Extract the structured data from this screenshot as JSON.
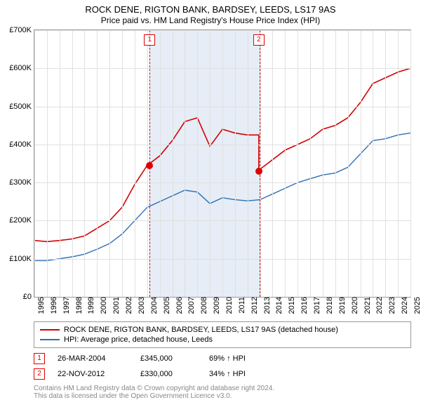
{
  "title": "ROCK DENE, RIGTON BANK, BARDSEY, LEEDS, LS17 9AS",
  "subtitle": "Price paid vs. HM Land Registry's House Price Index (HPI)",
  "chart": {
    "type": "line",
    "background_color": "#ffffff",
    "grid_color": "#e0e0e0",
    "border_color": "#999999",
    "ylim": [
      0,
      700000
    ],
    "ytick_step": 100000,
    "y_ticks": [
      "£0",
      "£100K",
      "£200K",
      "£300K",
      "£400K",
      "£500K",
      "£600K",
      "£700K"
    ],
    "xlim": [
      1995,
      2025
    ],
    "x_ticks": [
      "1995",
      "1996",
      "1997",
      "1998",
      "1999",
      "2000",
      "2001",
      "2002",
      "2003",
      "2004",
      "2005",
      "2006",
      "2007",
      "2008",
      "2009",
      "2010",
      "2011",
      "2012",
      "2013",
      "2014",
      "2015",
      "2016",
      "2017",
      "2018",
      "2019",
      "2020",
      "2021",
      "2022",
      "2023",
      "2024",
      "2025"
    ],
    "series": [
      {
        "name": "price_paid",
        "label": "ROCK DENE, RIGTON BANK, BARDSEY, LEEDS, LS17 9AS (detached house)",
        "color": "#d40000",
        "line_width": 1.6,
        "points": [
          [
            1995,
            148000
          ],
          [
            1996,
            145000
          ],
          [
            1997,
            148000
          ],
          [
            1998,
            152000
          ],
          [
            1999,
            160000
          ],
          [
            2000,
            180000
          ],
          [
            2001,
            200000
          ],
          [
            2002,
            235000
          ],
          [
            2003,
            295000
          ],
          [
            2004,
            345000
          ],
          [
            2005,
            370000
          ],
          [
            2006,
            410000
          ],
          [
            2007,
            460000
          ],
          [
            2008,
            470000
          ],
          [
            2009,
            395000
          ],
          [
            2010,
            440000
          ],
          [
            2011,
            430000
          ],
          [
            2012,
            425000
          ],
          [
            2012.9,
            425000
          ],
          [
            2012.9,
            330000
          ],
          [
            2013,
            335000
          ],
          [
            2014,
            360000
          ],
          [
            2015,
            385000
          ],
          [
            2016,
            400000
          ],
          [
            2017,
            415000
          ],
          [
            2018,
            440000
          ],
          [
            2019,
            450000
          ],
          [
            2020,
            470000
          ],
          [
            2021,
            510000
          ],
          [
            2022,
            560000
          ],
          [
            2023,
            575000
          ],
          [
            2024,
            590000
          ],
          [
            2025,
            600000
          ]
        ]
      },
      {
        "name": "hpi",
        "label": "HPI: Average price, detached house, Leeds",
        "color": "#2f6fb3",
        "line_width": 1.4,
        "points": [
          [
            1995,
            95000
          ],
          [
            1996,
            95000
          ],
          [
            1997,
            100000
          ],
          [
            1998,
            105000
          ],
          [
            1999,
            112000
          ],
          [
            2000,
            125000
          ],
          [
            2001,
            140000
          ],
          [
            2002,
            165000
          ],
          [
            2003,
            200000
          ],
          [
            2004,
            235000
          ],
          [
            2005,
            250000
          ],
          [
            2006,
            265000
          ],
          [
            2007,
            280000
          ],
          [
            2008,
            275000
          ],
          [
            2009,
            245000
          ],
          [
            2010,
            260000
          ],
          [
            2011,
            255000
          ],
          [
            2012,
            252000
          ],
          [
            2013,
            255000
          ],
          [
            2014,
            270000
          ],
          [
            2015,
            285000
          ],
          [
            2016,
            300000
          ],
          [
            2017,
            310000
          ],
          [
            2018,
            320000
          ],
          [
            2019,
            325000
          ],
          [
            2020,
            340000
          ],
          [
            2021,
            375000
          ],
          [
            2022,
            410000
          ],
          [
            2023,
            415000
          ],
          [
            2024,
            425000
          ],
          [
            2025,
            430000
          ]
        ]
      }
    ],
    "marker_band": {
      "x_start": 2004.2,
      "x_end": 2012.9,
      "fill": "rgba(200,215,235,0.45)",
      "dash_color": "#d40000"
    },
    "markers": [
      {
        "idx": "1",
        "x": 2004.2,
        "y": 345000
      },
      {
        "idx": "2",
        "x": 2012.9,
        "y": 330000
      }
    ],
    "label_fontsize": 11,
    "title_fontsize": 13
  },
  "legend": {
    "items": [
      {
        "color": "#d40000",
        "text": "ROCK DENE, RIGTON BANK, BARDSEY, LEEDS, LS17 9AS (detached house)"
      },
      {
        "color": "#2f6fb3",
        "text": "HPI: Average price, detached house, Leeds"
      }
    ]
  },
  "sales": [
    {
      "idx": "1",
      "date": "26-MAR-2004",
      "price": "£345,000",
      "hpi": "69% ↑ HPI"
    },
    {
      "idx": "2",
      "date": "22-NOV-2012",
      "price": "£330,000",
      "hpi": "34% ↑ HPI"
    }
  ],
  "footer": {
    "line1": "Contains HM Land Registry data © Crown copyright and database right 2024.",
    "line2": "This data is licensed under the Open Government Licence v3.0."
  }
}
